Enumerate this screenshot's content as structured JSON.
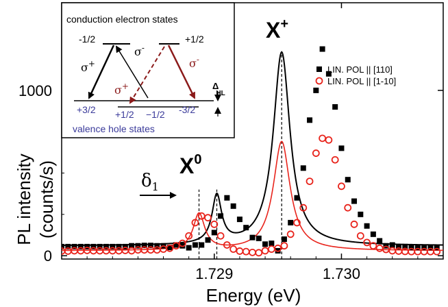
{
  "chart_data": {
    "type": "scatter",
    "xlabel": "Energy (eV)",
    "ylabel_lines": [
      "PL intensity",
      "(counts/s)"
    ],
    "xlim": [
      1.7278,
      1.7308
    ],
    "ylim": [
      -20,
      1530
    ],
    "x_ticks": [
      1.729,
      1.73
    ],
    "x_tick_labels": [
      "1.729",
      "1.730"
    ],
    "y_ticks": [
      0,
      1000
    ],
    "y_tick_labels": [
      "0",
      "1000"
    ],
    "legend_position": "top-right",
    "series": [
      {
        "name": "LIN. POL || [110]",
        "marker": "filled-square",
        "color": "#000000",
        "x": [
          1.7278,
          1.72785,
          1.7279,
          1.72795,
          1.728,
          1.72805,
          1.7281,
          1.72815,
          1.7282,
          1.72825,
          1.7283,
          1.72835,
          1.7284,
          1.72845,
          1.7285,
          1.72855,
          1.7286,
          1.72865,
          1.7287,
          1.72875,
          1.7288,
          1.72885,
          1.7289,
          1.72895,
          1.729,
          1.72905,
          1.7291,
          1.72915,
          1.7292,
          1.72925,
          1.7293,
          1.72935,
          1.7294,
          1.72945,
          1.7295,
          1.72955,
          1.7296,
          1.72965,
          1.7297,
          1.72975,
          1.7298,
          1.72985,
          1.7299,
          1.72995,
          1.73,
          1.73005,
          1.7301,
          1.73015,
          1.7302,
          1.73025,
          1.7303,
          1.73035,
          1.7304,
          1.73045,
          1.7305,
          1.73055,
          1.7306,
          1.73065,
          1.7307,
          1.73075
        ],
        "y": [
          55,
          55,
          55,
          55,
          55,
          55,
          55,
          55,
          55,
          55,
          55,
          60,
          60,
          62,
          62,
          60,
          60,
          50,
          65,
          60,
          48,
          65,
          65,
          95,
          140,
          240,
          350,
          300,
          220,
          170,
          110,
          105,
          70,
          75,
          30,
          100,
          200,
          350,
          530,
          820,
          1000,
          1250,
          1100,
          900,
          650,
          460,
          330,
          250,
          180,
          130,
          90,
          60,
          65,
          55,
          55,
          50,
          50,
          50,
          50,
          50
        ]
      },
      {
        "name": "LIN. POL || [1-10]",
        "marker": "open-circle",
        "color": "#e8231b",
        "x": [
          1.7278,
          1.72785,
          1.7279,
          1.72795,
          1.728,
          1.72805,
          1.7281,
          1.72815,
          1.7282,
          1.72825,
          1.7283,
          1.72835,
          1.7284,
          1.72845,
          1.7285,
          1.72855,
          1.7286,
          1.72865,
          1.7287,
          1.72875,
          1.7288,
          1.72885,
          1.7289,
          1.72895,
          1.729,
          1.72905,
          1.7291,
          1.72915,
          1.7292,
          1.72925,
          1.7293,
          1.72935,
          1.7294,
          1.72945,
          1.7295,
          1.72955,
          1.7296,
          1.72965,
          1.7297,
          1.72975,
          1.7298,
          1.72985,
          1.7299,
          1.72995,
          1.73,
          1.73005,
          1.7301,
          1.73015,
          1.7302,
          1.73025,
          1.7303,
          1.73035,
          1.7304,
          1.73045,
          1.7305,
          1.73055,
          1.7306,
          1.73065,
          1.7307,
          1.73075
        ],
        "y": [
          28,
          28,
          30,
          30,
          32,
          30,
          30,
          30,
          30,
          30,
          32,
          30,
          35,
          35,
          35,
          35,
          40,
          45,
          60,
          75,
          120,
          200,
          240,
          230,
          190,
          120,
          65,
          40,
          28,
          25,
          20,
          18,
          30,
          40,
          45,
          60,
          130,
          200,
          290,
          450,
          620,
          710,
          700,
          580,
          420,
          290,
          190,
          120,
          80,
          60,
          45,
          38,
          30,
          28,
          26,
          25,
          25,
          25,
          25,
          25
        ]
      }
    ],
    "fit_curves": [
      {
        "color": "#000000",
        "baseline": 60,
        "peaks": [
          {
            "x0": 1.72902,
            "amp": 290,
            "gamma": 4.5e-05
          },
          {
            "x0": 1.72953,
            "amp": 1170,
            "gamma": 8e-05
          }
        ]
      },
      {
        "color": "#e8231b",
        "baseline": 30,
        "peaks": [
          {
            "x0": 1.72888,
            "amp": 220,
            "gamma": 5.5e-05
          },
          {
            "x0": 1.72953,
            "amp": 660,
            "gamma": 8e-05
          }
        ]
      }
    ],
    "annotations": {
      "x_zero": "X",
      "x_zero_sup": "0",
      "x_plus": "X",
      "x_plus_sup": "+",
      "delta": "δ",
      "delta_sub": "1",
      "markers_x": [
        1.72888,
        1.72902,
        1.72953
      ]
    },
    "inset": {
      "title": "conduction electron states",
      "bottom_label": "valence  hole  states",
      "cond_left": "-1/2",
      "cond_right": "+1/2",
      "val_1": "+3/2",
      "val_2": "+1/2",
      "val_3": "−1/2",
      "val_4": "-3/2",
      "sigma_plus": "σ",
      "sigma_minus": "σ",
      "plus": "+",
      "minus": "-",
      "delta_hl": "Δ",
      "delta_hl_sub": "HL",
      "colors": {
        "blue_text": "#3a3a9a",
        "dark_red": "#8b1a1a"
      }
    }
  }
}
